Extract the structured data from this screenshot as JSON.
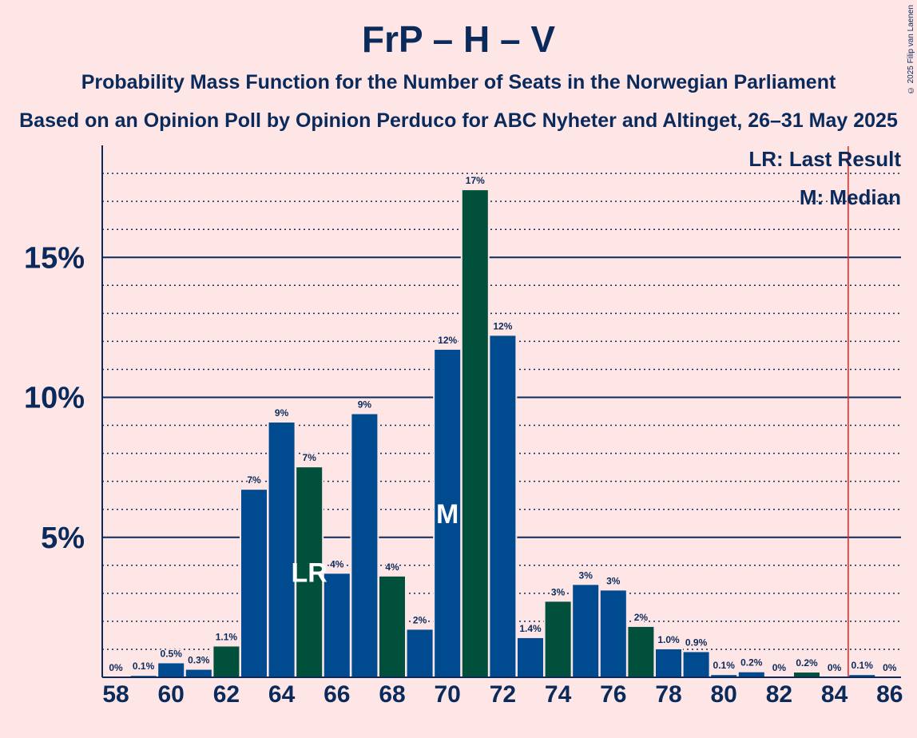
{
  "title": "FrP – H – V",
  "subtitle": "Probability Mass Function for the Number of Seats in the Norwegian Parliament",
  "subtitle2": "Based on an Opinion Poll by Opinion Perduco for ABC Nyheter and Altinget, 26–31 May 2025",
  "copyright": "© 2025 Filip van Laenen",
  "legend": {
    "last_result": "LR: Last Result",
    "median": "M: Median"
  },
  "colors": {
    "blue": "#004a8f",
    "green": "#00503c",
    "line": "#0a2a5c",
    "majority": "#e8211f",
    "background": "#ffe6e6"
  },
  "chart_data": {
    "type": "bar",
    "x": [
      58,
      59,
      60,
      61,
      62,
      63,
      64,
      65,
      66,
      67,
      68,
      69,
      70,
      71,
      72,
      73,
      74,
      75,
      76,
      77,
      78,
      79,
      80,
      81,
      82,
      83,
      84,
      85,
      86
    ],
    "values": [
      0,
      0.05,
      0.5,
      0.27,
      1.1,
      6.7,
      9.1,
      7.5,
      3.7,
      9.4,
      3.6,
      1.7,
      11.7,
      17.4,
      12.2,
      1.4,
      2.7,
      3.3,
      3.1,
      1.8,
      1.0,
      0.9,
      0.08,
      0.18,
      0,
      0.17,
      0,
      0.08,
      0
    ],
    "labels": [
      "0%",
      "0.1%",
      "0.5%",
      "0.3%",
      "1.1%",
      "7%",
      "9%",
      "7%",
      "4%",
      "9%",
      "4%",
      "2%",
      "12%",
      "17%",
      "12%",
      "1.4%",
      "3%",
      "3%",
      "3%",
      "2%",
      "1.0%",
      "0.9%",
      "0.1%",
      "0.2%",
      "0%",
      "0.2%",
      "0%",
      "0.1%",
      "0%"
    ],
    "colors": [
      "blue",
      "blue",
      "blue",
      "blue",
      "green",
      "blue",
      "blue",
      "green",
      "blue",
      "blue",
      "green",
      "blue",
      "blue",
      "green",
      "blue",
      "blue",
      "green",
      "blue",
      "blue",
      "green",
      "blue",
      "blue",
      "blue",
      "blue",
      "blue",
      "green",
      "blue",
      "blue",
      "blue"
    ],
    "x_tick_labels": [
      "58",
      "60",
      "62",
      "64",
      "66",
      "68",
      "70",
      "72",
      "74",
      "76",
      "78",
      "80",
      "82",
      "84",
      "86"
    ],
    "y_ticks": [
      {
        "value": 5,
        "label": "5%"
      },
      {
        "value": 10,
        "label": "10%"
      },
      {
        "value": 15,
        "label": "15%"
      }
    ],
    "ylim": [
      0,
      19
    ],
    "last_result": {
      "x": 65,
      "label": "LR"
    },
    "median": {
      "x": 70,
      "label": "M"
    },
    "majority_line_x": 84.5
  }
}
